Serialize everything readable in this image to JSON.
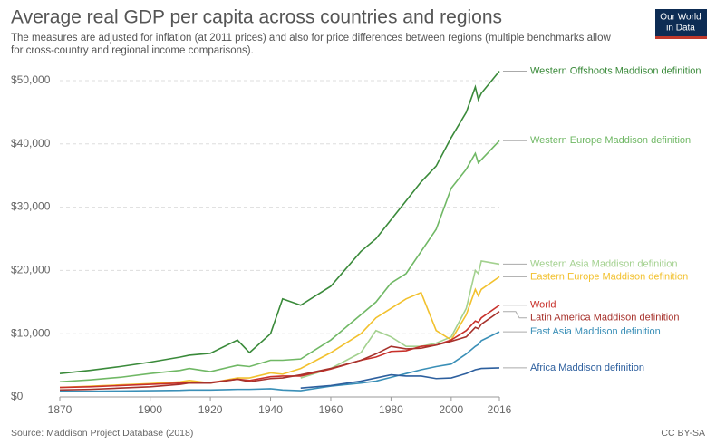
{
  "chart_data": {
    "type": "line",
    "title": "Average real GDP per capita across countries and regions",
    "subtitle_lines": [
      "The measures are adjusted for inflation (at 2011 prices) and also for price differences between regions (multiple benchmarks allow",
      "for cross-country and regional income comparisons)."
    ],
    "logo_lines": [
      "Our World",
      "in Data"
    ],
    "source": "Source: Maddison Project Database (2018)",
    "license": "CC BY-SA",
    "x": [
      1870,
      1880,
      1890,
      1900,
      1910,
      1913,
      1920,
      1929,
      1933,
      1940,
      1944,
      1950,
      1960,
      1970,
      1975,
      1980,
      1985,
      1990,
      1995,
      2000,
      2005,
      2008,
      2009,
      2010,
      2016
    ],
    "xlim": [
      1870,
      2016
    ],
    "xticks": [
      1870,
      1900,
      1920,
      1940,
      1960,
      1980,
      2000,
      2016
    ],
    "ylim": [
      0,
      52000
    ],
    "yticks": [
      {
        "value": 0,
        "label": "$0"
      },
      {
        "value": 10000,
        "label": "$10,000"
      },
      {
        "value": 20000,
        "label": "$20,000"
      },
      {
        "value": 30000,
        "label": "$30,000"
      },
      {
        "value": 40000,
        "label": "$40,000"
      },
      {
        "value": 50000,
        "label": "$50,000"
      }
    ],
    "grid": true,
    "series": [
      {
        "name": "Western Offshoots Maddison definition",
        "color": "#3a8a3a",
        "values": [
          3700,
          4200,
          4800,
          5500,
          6300,
          6600,
          6900,
          9000,
          7000,
          10000,
          15500,
          14500,
          17500,
          23000,
          25000,
          28000,
          31000,
          34000,
          36500,
          41000,
          45000,
          49000,
          47000,
          48000,
          51500
        ]
      },
      {
        "name": "Western Europe Maddison definition",
        "color": "#70b865",
        "values": [
          2400,
          2700,
          3100,
          3700,
          4200,
          4500,
          4000,
          5000,
          4800,
          5800,
          5800,
          6000,
          9000,
          13000,
          15000,
          18000,
          19500,
          23000,
          26500,
          33000,
          36000,
          38500,
          37000,
          37500,
          40500
        ]
      },
      {
        "name": "Western Asia Maddison definition",
        "color": "#a3d18f",
        "values": [
          null,
          null,
          null,
          null,
          null,
          null,
          null,
          null,
          null,
          null,
          null,
          3000,
          4500,
          7000,
          10500,
          9500,
          8000,
          8000,
          8500,
          9500,
          14000,
          20000,
          19500,
          21500,
          21000
        ]
      },
      {
        "name": "Eastern Europe Maddison definition",
        "color": "#f2c12e",
        "values": [
          1500,
          1700,
          1900,
          2100,
          2400,
          2600,
          2200,
          3000,
          3000,
          3800,
          3600,
          4500,
          7000,
          10000,
          12500,
          14000,
          15500,
          16500,
          10500,
          9000,
          13000,
          17000,
          16000,
          17000,
          19000
        ]
      },
      {
        "name": "World",
        "color": "#c8312b",
        "values": [
          1500,
          1600,
          1800,
          2000,
          2200,
          2300,
          2300,
          2800,
          2600,
          3200,
          3300,
          3300,
          4400,
          5800,
          6300,
          7200,
          7300,
          8000,
          8200,
          9000,
          10500,
          12000,
          11800,
          12500,
          14500
        ]
      },
      {
        "name": "Latin America Maddison definition",
        "color": "#a7322c",
        "values": [
          1100,
          1200,
          1400,
          1600,
          2000,
          2200,
          2200,
          2800,
          2400,
          2900,
          3000,
          3500,
          4500,
          5800,
          6800,
          8000,
          7600,
          7700,
          8200,
          8800,
          9500,
          11000,
          10800,
          11500,
          13500
        ]
      },
      {
        "name": "East Asia Maddison definition",
        "color": "#3a8fb7",
        "values": [
          900,
          900,
          950,
          1000,
          1050,
          1100,
          1100,
          1200,
          1200,
          1300,
          1100,
          1000,
          1700,
          2200,
          2500,
          3100,
          3700,
          4300,
          4800,
          5200,
          6800,
          8000,
          8300,
          8900,
          10300
        ]
      },
      {
        "name": "Africa Maddison definition",
        "color": "#2d5f9e",
        "values": [
          null,
          null,
          null,
          null,
          null,
          null,
          null,
          null,
          null,
          null,
          null,
          1400,
          1800,
          2500,
          3000,
          3500,
          3300,
          3300,
          2900,
          3000,
          3700,
          4300,
          4400,
          4500,
          4600
        ]
      }
    ]
  }
}
